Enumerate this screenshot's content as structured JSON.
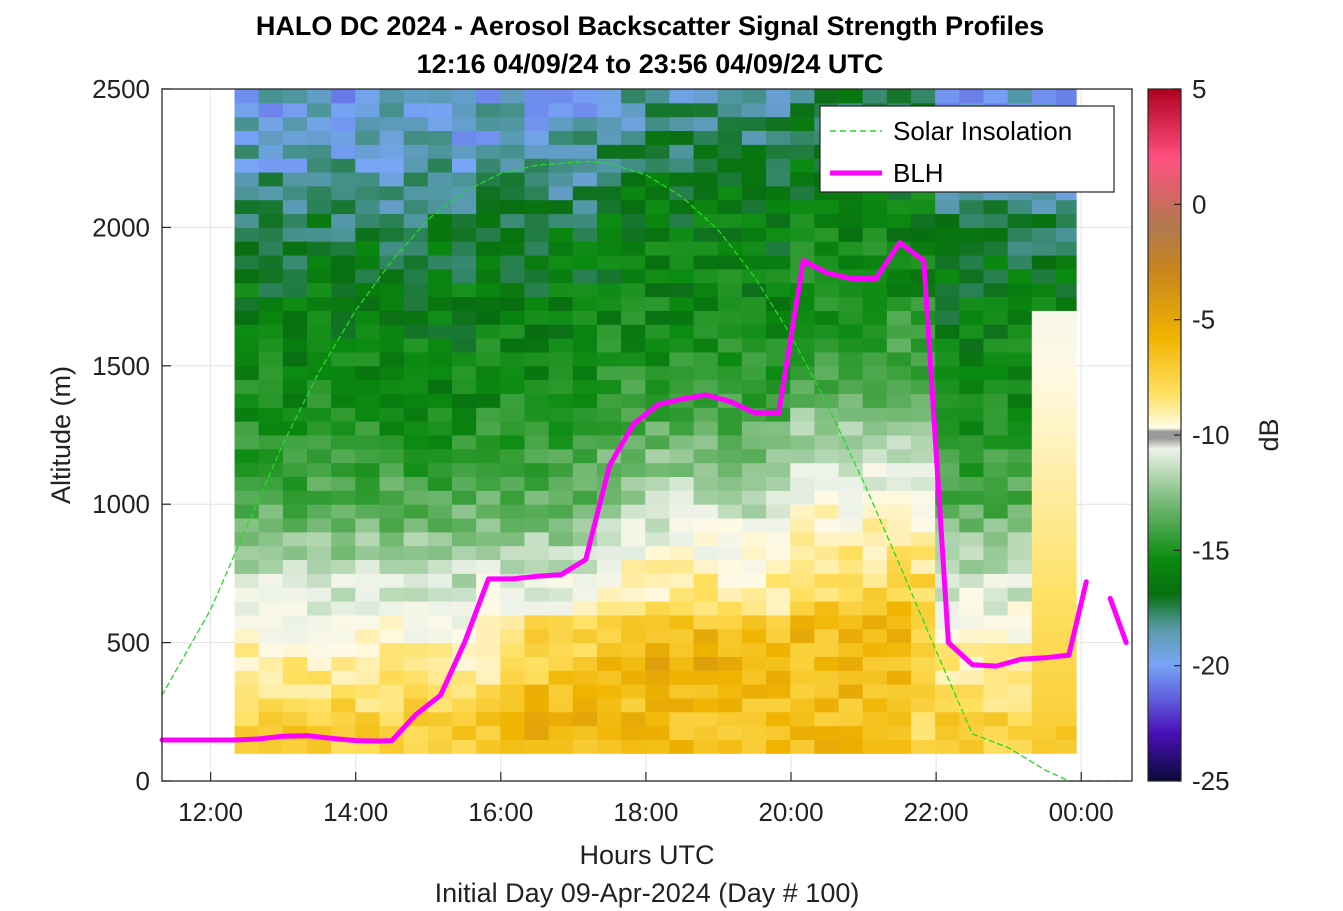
{
  "chart_data": {
    "type": "heatmap",
    "title": "HALO DC 2024 - Aerosol Backscatter Signal Strength Profiles",
    "subtitle": "12:16 04/09/24 to 23:56 04/09/24  UTC",
    "xlabel": "Hours UTC",
    "xlabel2": "Initial Day 09-Apr-2024 (Day # 100)",
    "ylabel": "Altitude (m)",
    "colorbar_label": "dB",
    "xlim": [
      11.33,
      24.7
    ],
    "ylim": [
      0,
      2500
    ],
    "x_ticks": [
      12,
      14,
      16,
      18,
      20,
      22,
      24
    ],
    "x_tick_labels": [
      "12:00",
      "14:00",
      "16:00",
      "18:00",
      "20:00",
      "22:00",
      "00:00"
    ],
    "y_ticks": [
      0,
      500,
      1000,
      1500,
      2000,
      2500
    ],
    "y_tick_labels": [
      "0",
      "500",
      "1000",
      "1500",
      "2000",
      "2500"
    ],
    "clim": [
      -25,
      5
    ],
    "colorbar_ticks": [
      5,
      0,
      -5,
      -10,
      -15,
      -20,
      -25
    ],
    "colorbar_tick_labels": [
      "5",
      "0",
      "-5",
      "-10",
      "-15",
      "-20",
      "-25"
    ],
    "grid": true,
    "legend_position": "top-right",
    "heatmap": {
      "x_start": 12.33,
      "x_end": 23.93,
      "column_width_hours": 0.333,
      "z_min": 100,
      "z_max": 2500,
      "row_height_m": 50,
      "z_profile_dB": [
        [
          100,
          -7
        ],
        [
          150,
          -6
        ],
        [
          250,
          -7
        ],
        [
          350,
          -8
        ],
        [
          450,
          -8.5
        ],
        [
          550,
          -9.5
        ],
        [
          650,
          -10.5
        ],
        [
          750,
          -11.5
        ],
        [
          850,
          -12.5
        ],
        [
          950,
          -13.5
        ],
        [
          1100,
          -14.5
        ],
        [
          1300,
          -15.5
        ],
        [
          1500,
          -16
        ],
        [
          1700,
          -16.5
        ],
        [
          1900,
          -17
        ],
        [
          2100,
          -18
        ],
        [
          2300,
          -19
        ],
        [
          2500,
          -19.5
        ]
      ]
    },
    "series": [
      {
        "name": "Solar Insolation",
        "style": "dashed",
        "color": "#22dd22",
        "x": [
          11.33,
          12,
          12.5,
          13,
          13.5,
          14,
          14.5,
          15,
          15.5,
          16,
          16.5,
          17,
          17.2,
          17.5,
          18,
          18.5,
          19,
          19.5,
          20,
          20.5,
          21,
          21.5,
          22,
          22.5,
          23,
          23.5,
          23.83,
          24.7
        ],
        "y": [
          310,
          620,
          920,
          1220,
          1480,
          1700,
          1880,
          2030,
          2130,
          2195,
          2225,
          2235,
          2238,
          2230,
          2190,
          2110,
          1990,
          1820,
          1610,
          1360,
          1080,
          780,
          470,
          170,
          120,
          40,
          0,
          0
        ]
      },
      {
        "name": "BLH",
        "style": "solid",
        "color": "#ff00ff",
        "x": [
          11.33,
          12.0,
          12.33,
          12.67,
          13.0,
          13.33,
          13.67,
          14.0,
          14.33,
          14.5,
          14.83,
          15.17,
          15.5,
          15.83,
          16.17,
          16.5,
          16.83,
          17.17,
          17.5,
          17.83,
          18.17,
          18.5,
          18.83,
          19.17,
          19.5,
          19.83,
          20.17,
          20.5,
          20.83,
          21.17,
          21.5,
          21.83,
          22.17,
          22.5,
          22.83,
          23.17,
          23.5,
          23.83,
          24.07
        ],
        "y": [
          148,
          148,
          148,
          152,
          162,
          164,
          154,
          146,
          144,
          146,
          240,
          310,
          500,
          730,
          730,
          740,
          745,
          800,
          1140,
          1290,
          1360,
          1380,
          1395,
          1370,
          1330,
          1330,
          1880,
          1835,
          1815,
          1815,
          1945,
          1880,
          500,
          420,
          415,
          440,
          445,
          455,
          720
        ]
      },
      {
        "name": "BLH",
        "style": "solid",
        "color": "#ff00ff",
        "x": [
          24.4,
          24.62
        ],
        "y": [
          660,
          500
        ]
      }
    ]
  },
  "legend": {
    "items": [
      {
        "label": "Solar Insolation",
        "color": "#22dd22",
        "style": "dashed"
      },
      {
        "label": "BLH",
        "color": "#ff00ff",
        "style": "solid"
      }
    ]
  }
}
